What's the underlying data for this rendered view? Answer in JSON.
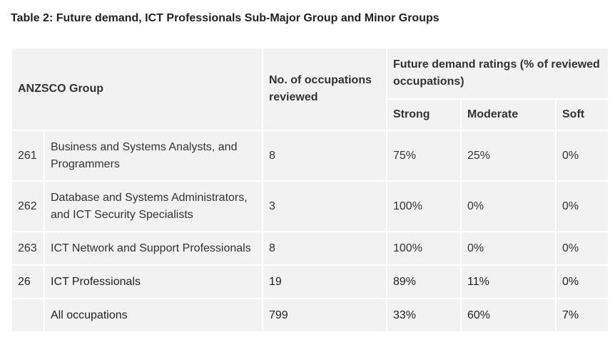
{
  "caption": "Table 2: Future demand, ICT Professionals Sub-Major Group and Minor Groups",
  "headers": {
    "group": "ANZSCO Group",
    "reviewed": "No. of occupations reviewed",
    "ratings": "Future demand ratings (% of reviewed occupations)",
    "strong": "Strong",
    "moderate": "Moderate",
    "soft": "Soft"
  },
  "rows": [
    {
      "code": "261",
      "name": "Business and Systems Analysts, and Programmers",
      "reviewed": "8",
      "strong": "75%",
      "moderate": "25%",
      "soft": "0%"
    },
    {
      "code": "262",
      "name": "Database and Systems Administrators, and ICT Security Specialists",
      "reviewed": "3",
      "strong": "100%",
      "moderate": "0%",
      "soft": "0%"
    },
    {
      "code": "263",
      "name": "ICT Network and Support Professionals",
      "reviewed": "8",
      "strong": "100%",
      "moderate": "0%",
      "soft": "0%"
    },
    {
      "code": "26",
      "name": "ICT Professionals",
      "reviewed": "19",
      "strong": "89%",
      "moderate": "11%",
      "soft": "0%"
    },
    {
      "code": "",
      "name": "All occupations",
      "reviewed": "799",
      "strong": "33%",
      "moderate": "60%",
      "soft": "7%"
    }
  ]
}
